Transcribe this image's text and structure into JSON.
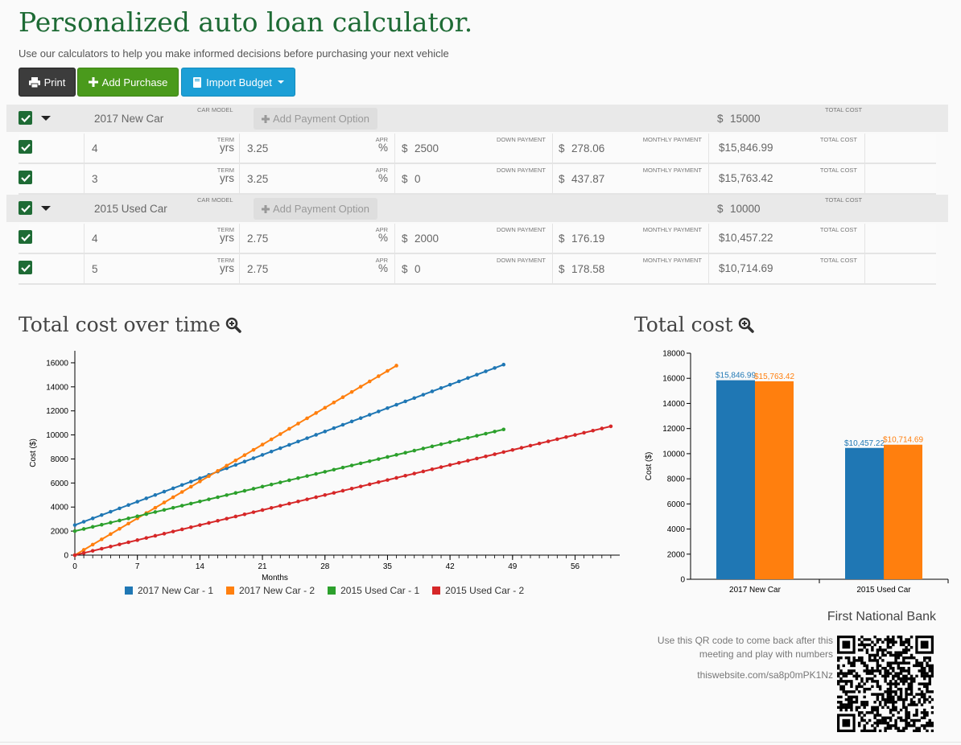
{
  "header": {
    "title": "Personalized auto loan calculator.",
    "subtitle": "Use our calculators to help you make informed decisions before purchasing your next vehicle"
  },
  "toolbar": {
    "print_label": "Print",
    "add_purchase_label": "Add Purchase",
    "import_budget_label": "Import Budget"
  },
  "labels": {
    "car_model": "CAR MODEL",
    "total_cost": "TOTAL COST",
    "term": "TERM",
    "apr": "APR",
    "down_payment": "DOWN PAYMENT",
    "monthly_payment": "MONTHLY PAYMENT",
    "yrs": "yrs",
    "percent": "%",
    "dollar": "$",
    "add_payment_option": "Add Payment Option"
  },
  "purchases": [
    {
      "model": "2017 New Car",
      "total_cost": "15000",
      "options": [
        {
          "term": "4",
          "apr": "3.25",
          "down": "2500",
          "monthly": "278.06",
          "total": "$15,846.99"
        },
        {
          "term": "3",
          "apr": "3.25",
          "down": "0",
          "monthly": "437.87",
          "total": "$15,763.42"
        }
      ]
    },
    {
      "model": "2015 Used Car",
      "total_cost": "10000",
      "options": [
        {
          "term": "4",
          "apr": "2.75",
          "down": "2000",
          "monthly": "176.19",
          "total": "$10,457.22"
        },
        {
          "term": "5",
          "apr": "2.75",
          "down": "0",
          "monthly": "178.58",
          "total": "$10,714.69"
        }
      ]
    }
  ],
  "charts": {
    "line_title": "Total cost over time",
    "bar_title": "Total cost"
  },
  "chart_data": [
    {
      "type": "line",
      "title": "Total cost over time",
      "xlabel": "Months",
      "ylabel": "Cost ($)",
      "xlim": [
        0,
        61
      ],
      "ylim": [
        0,
        17000
      ],
      "x_ticks": [
        0,
        7,
        14,
        21,
        28,
        35,
        42,
        49,
        56
      ],
      "y_ticks": [
        0,
        2000,
        4000,
        6000,
        8000,
        10000,
        12000,
        14000,
        16000
      ],
      "legend_position": "bottom",
      "series": [
        {
          "name": "2017 New Car - 1",
          "color": "#1f77b4",
          "start": 2500,
          "monthly": 278.06,
          "months": 48
        },
        {
          "name": "2017 New Car - 2",
          "color": "#ff7f0e",
          "start": 0,
          "monthly": 437.87,
          "months": 36
        },
        {
          "name": "2015 Used Car - 1",
          "color": "#2ca02c",
          "start": 2000,
          "monthly": 176.19,
          "months": 48
        },
        {
          "name": "2015 Used Car - 2",
          "color": "#d62728",
          "start": 0,
          "monthly": 178.58,
          "months": 60
        }
      ]
    },
    {
      "type": "bar",
      "title": "Total cost",
      "ylabel": "Cost ($)",
      "ylim": [
        0,
        18000
      ],
      "y_ticks": [
        0,
        2000,
        4000,
        6000,
        8000,
        10000,
        12000,
        14000,
        16000,
        18000
      ],
      "categories": [
        "2017 New Car",
        "2015 Used Car"
      ],
      "series": [
        {
          "color": "#1f77b4",
          "values": [
            15846.99,
            10457.22
          ],
          "labels": [
            "$15,846.99",
            "$10,457.22"
          ]
        },
        {
          "color": "#ff7f0e",
          "values": [
            15763.42,
            10714.69
          ],
          "labels": [
            "$15,763.42",
            "$10,714.69"
          ]
        }
      ]
    }
  ],
  "bank": {
    "name": "First National Bank",
    "qr_text_line1": "Use this QR code to come back after this",
    "qr_text_line2": "meeting and play with numbers",
    "url": "thiswebsite.com/sa8p0mPK1Nz"
  }
}
